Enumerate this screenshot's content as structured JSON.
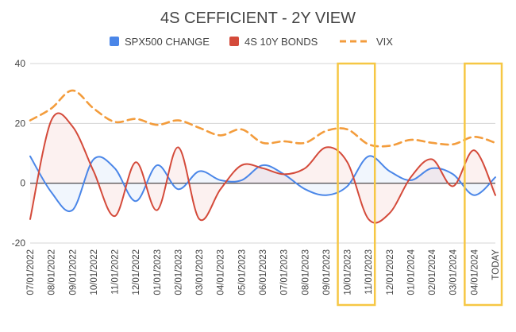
{
  "chart_data": {
    "type": "line",
    "title": "4S CEFFICIENT - 2Y VIEW",
    "xlabel": "",
    "ylabel": "",
    "ylim": [
      -20,
      40
    ],
    "yticks": [
      -20,
      0,
      20,
      40
    ],
    "grid": true,
    "legend_position": "top",
    "categories": [
      "07/01/2022",
      "08/01/2022",
      "09/01/2022",
      "10/01/2022",
      "11/01/2022",
      "12/01/2022",
      "01/01/2023",
      "02/01/2023",
      "03/01/2023",
      "04/01/2023",
      "05/01/2023",
      "06/01/2023",
      "07/01/2023",
      "08/01/2023",
      "09/01/2023",
      "10/01/2023",
      "11/01/2023",
      "12/01/2023",
      "01/01/2024",
      "02/01/2024",
      "03/01/2024",
      "04/01/2024",
      "TODAY"
    ],
    "series": [
      {
        "name": "SPX500 CHANGE",
        "color": "#4a86e8",
        "style": "solid",
        "fill_to_zero": true,
        "values": [
          9,
          -3,
          -9,
          8,
          5,
          -6,
          6,
          -2,
          4,
          1,
          1,
          6,
          3,
          -2,
          -4,
          -1,
          9,
          4,
          1,
          5,
          3,
          -4,
          2
        ]
      },
      {
        "name": "4S 10Y BONDS",
        "color": "#d44a3a",
        "style": "solid",
        "fill_to_zero": true,
        "values": [
          -12,
          21,
          19,
          4,
          -11,
          7,
          -9,
          12,
          -12,
          -2,
          6,
          5,
          3,
          5,
          12,
          7,
          -12,
          -10,
          2,
          8,
          -1,
          11,
          -4
        ]
      },
      {
        "name": "VIX",
        "color": "#f39c3c",
        "style": "dashed",
        "fill_to_zero": false,
        "values": [
          21,
          25,
          31,
          25,
          20.5,
          21.5,
          19.5,
          21,
          18.5,
          16,
          18,
          13.5,
          14,
          13.5,
          17.5,
          18,
          13,
          12.5,
          14.5,
          13.5,
          13,
          15.5,
          13.5
        ]
      }
    ],
    "highlight_boxes": [
      {
        "from": "10/01/2023",
        "to": "11/01/2023",
        "color": "#f6c744"
      },
      {
        "from": "04/01/2024",
        "to": "TODAY",
        "color": "#f6c744"
      }
    ]
  }
}
